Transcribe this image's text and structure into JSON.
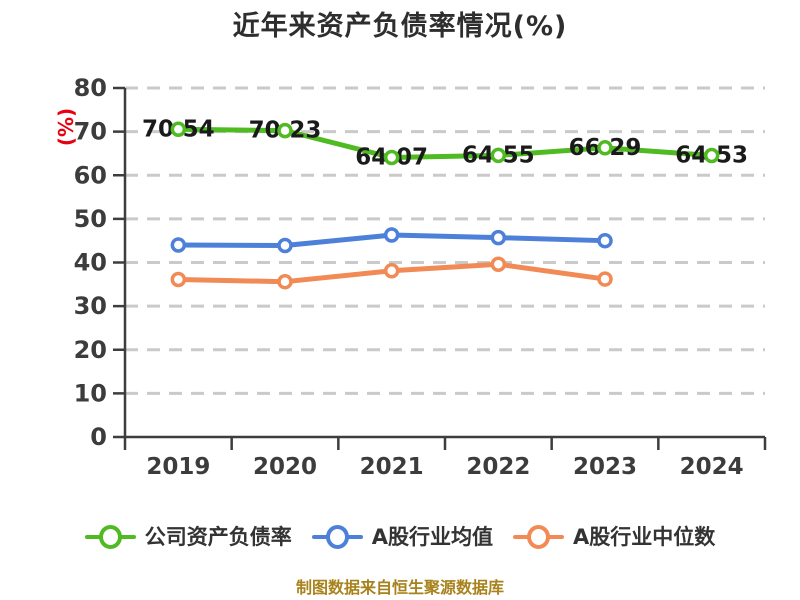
{
  "title": "近年来资产负债率情况(%)",
  "footer": "制图数据来自恒生聚源数据库",
  "colors": {
    "background": "#ffffff",
    "title": "#2e2e2e",
    "axis": "#3d3d3d",
    "grid": "#cacaca",
    "tick_label": "#3c3c3c",
    "data_label": "#1a1a1a",
    "y_axis_label": "#e8000f",
    "footer": "#a8821c",
    "series_green": "#4fba21",
    "series_blue": "#4d80d8",
    "series_orange": "#f18a54"
  },
  "chart_data": {
    "type": "line",
    "title": "近年来资产负债率情况(%)",
    "ylabel": "(%)",
    "xlabel": "",
    "categories": [
      "2019",
      "2020",
      "2021",
      "2022",
      "2023",
      "2024"
    ],
    "series": [
      {
        "name": "公司资产负债率",
        "color": "#4fba21",
        "values": [
          70.54,
          70.23,
          64.07,
          64.55,
          66.29,
          64.53
        ],
        "data_labels": [
          "70.54",
          "70.23",
          "64.07",
          "64.55",
          "66.29",
          "64.53"
        ]
      },
      {
        "name": "A股行业均值",
        "color": "#4d80d8",
        "values": [
          44.0,
          43.9,
          46.3,
          45.7,
          45.0,
          null
        ]
      },
      {
        "name": "A股行业中位数",
        "color": "#f18a54",
        "values": [
          36.1,
          35.6,
          38.1,
          39.6,
          36.2,
          null
        ]
      }
    ],
    "ylim": [
      0,
      80
    ],
    "ytick_step": 10,
    "grid": "dashed-horizontal",
    "legend_position": "bottom",
    "marker": "circle-white-fill"
  },
  "legend": {
    "items": [
      {
        "label": "公司资产负债率",
        "color": "#4fba21"
      },
      {
        "label": "A股行业均值",
        "color": "#4d80d8"
      },
      {
        "label": "A股行业中位数",
        "color": "#f18a54"
      }
    ]
  }
}
